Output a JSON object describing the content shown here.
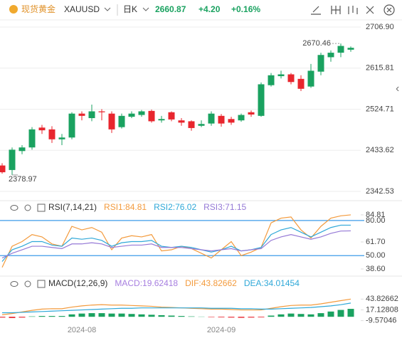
{
  "header": {
    "name": "现货黄金",
    "symbol": "XAUUSD",
    "period": "日K",
    "price": "2660.87",
    "change": "+4.20",
    "change_pct": "+0.16%"
  },
  "chart_data": [
    {
      "type": "candlestick",
      "up_color": "#1aa260",
      "down_color": "#e8262e",
      "open": [
        2400,
        2390,
        2432,
        2440,
        2484,
        2480,
        2458,
        2462,
        2515,
        2505,
        2520,
        2515,
        2485,
        2508,
        2512,
        2521,
        2500,
        2518,
        2500,
        2498,
        2488,
        2493,
        2510,
        2503,
        2500,
        2518,
        2510,
        2578,
        2598,
        2602,
        2592,
        2575,
        2608,
        2640,
        2650,
        2656.67
      ],
      "high": [
        2405,
        2440,
        2445,
        2485,
        2490,
        2487,
        2470,
        2518,
        2520,
        2535,
        2525,
        2520,
        2515,
        2520,
        2523,
        2524,
        2510,
        2520,
        2505,
        2500,
        2500,
        2520,
        2514,
        2508,
        2515,
        2522,
        2584,
        2605,
        2610,
        2605,
        2600,
        2625,
        2650,
        2655,
        2670.46,
        2664
      ],
      "low": [
        2382,
        2378.97,
        2425,
        2435,
        2470,
        2450,
        2445,
        2458,
        2500,
        2498,
        2500,
        2472,
        2482,
        2505,
        2508,
        2495,
        2495,
        2498,
        2488,
        2477,
        2485,
        2488,
        2486,
        2490,
        2497,
        2508,
        2508,
        2575,
        2593,
        2580,
        2565,
        2572,
        2600,
        2630,
        2640,
        2652
      ],
      "close": [
        2385,
        2435,
        2440,
        2480,
        2478,
        2458,
        2462,
        2515,
        2510,
        2520,
        2518,
        2480,
        2510,
        2515,
        2520,
        2498,
        2503,
        2502,
        2495,
        2483,
        2492,
        2515,
        2493,
        2495,
        2512,
        2513,
        2580,
        2600,
        2602,
        2585,
        2570,
        2610,
        2645,
        2650,
        2665,
        2660.87
      ],
      "ylim": [
        2342.53,
        2706.9
      ],
      "yticks": [
        {
          "value": 2706.9,
          "label": "2706.90"
        },
        2615.81,
        2524.71,
        2433.62,
        2342.53
      ],
      "grid": true
    },
    {
      "type": "line",
      "title": "RSI(7,14,21)",
      "series": [
        {
          "name": "RSI1:84.81",
          "color": "#f39a3c",
          "values": [
            40,
            58,
            62,
            68,
            66,
            60,
            58,
            75,
            72,
            74,
            70,
            55,
            65,
            67,
            66,
            68,
            54,
            55,
            58,
            56,
            52,
            48,
            55,
            62,
            50,
            53,
            57,
            78,
            82,
            83,
            72,
            65,
            75,
            82,
            84,
            84.81
          ]
        },
        {
          "name": "RSI2:76.02",
          "color": "#2fa8d8",
          "values": [
            45,
            55,
            58,
            62,
            62,
            59,
            58,
            65,
            64,
            65,
            63,
            58,
            61,
            62,
            62,
            63,
            58,
            57,
            58,
            57,
            55,
            53,
            55,
            58,
            54,
            55,
            57,
            68,
            72,
            74,
            70,
            66,
            70,
            74,
            76,
            76.02
          ]
        },
        {
          "name": "RSI3:71.15",
          "color": "#9579d6",
          "values": [
            48,
            52,
            55,
            58,
            58,
            57,
            56,
            60,
            60,
            61,
            60,
            57,
            58,
            59,
            59,
            60,
            57,
            57,
            57,
            56,
            55,
            54,
            55,
            56,
            54,
            55,
            56,
            63,
            66,
            68,
            66,
            64,
            66,
            69,
            71,
            71.15
          ]
        }
      ],
      "ylim": [
        38.6,
        86
      ],
      "yticks": [
        84.81,
        {
          "value": 80,
          "label": "80.00"
        },
        {
          "value": 61.7,
          "label": "61.70"
        },
        {
          "value": 50,
          "label": "50.00"
        },
        {
          "value": 38.6,
          "label": "38.60"
        }
      ],
      "ref_lines": [
        80,
        50
      ],
      "ref_line_color": "#3d9be9"
    },
    {
      "type": "combo",
      "title": "MACD(12,26,9)",
      "up_color": "#1aa260",
      "down_color": "#e8262e",
      "categories": [
        null,
        null,
        null,
        null,
        null,
        null,
        null,
        null,
        "2024-08",
        null,
        null,
        null,
        null,
        null,
        null,
        null,
        null,
        null,
        null,
        null,
        null,
        null,
        "2024-09",
        null,
        null,
        null,
        null,
        null,
        null,
        null,
        null,
        null,
        null,
        null,
        null,
        null
      ],
      "series": [
        {
          "name": "MACD:19.62418",
          "kind": "bar",
          "color": "#a77fe0",
          "values": [
            -2,
            -3,
            -2,
            1,
            2,
            2,
            2,
            6,
            8,
            9,
            9,
            8,
            8,
            7,
            6,
            5,
            4,
            3,
            2,
            1,
            0.5,
            -1,
            -1.5,
            -2,
            -2.5,
            -2,
            -1.5,
            3,
            6,
            8,
            7,
            6,
            9,
            13,
            17,
            19.62418
          ]
        },
        {
          "name": "DIF:43.82662",
          "kind": "line",
          "color": "#f39a3c",
          "values": [
            5,
            8,
            12,
            16,
            19,
            20,
            20,
            24,
            27,
            29,
            30,
            29,
            29,
            28,
            27,
            26,
            24,
            23,
            22,
            21,
            20,
            19,
            19,
            18,
            17,
            17,
            17,
            21,
            25,
            28,
            29,
            29,
            32,
            36,
            40,
            43.82662
          ]
        },
        {
          "name": "DEA:34.01454",
          "kind": "line",
          "color": "#2fa8d8",
          "values": [
            10,
            10,
            11,
            12,
            13,
            14,
            15,
            16,
            17,
            18,
            19,
            20,
            21,
            21,
            22,
            22,
            22,
            22,
            22,
            22,
            22,
            21,
            21,
            21,
            20,
            20,
            19,
            19,
            20,
            21,
            22,
            23,
            25,
            27,
            30,
            34.01454
          ]
        }
      ],
      "ylim": [
        -12,
        62
      ],
      "yticks": [
        43.82662,
        17.12808,
        -9.57046
      ]
    }
  ]
}
